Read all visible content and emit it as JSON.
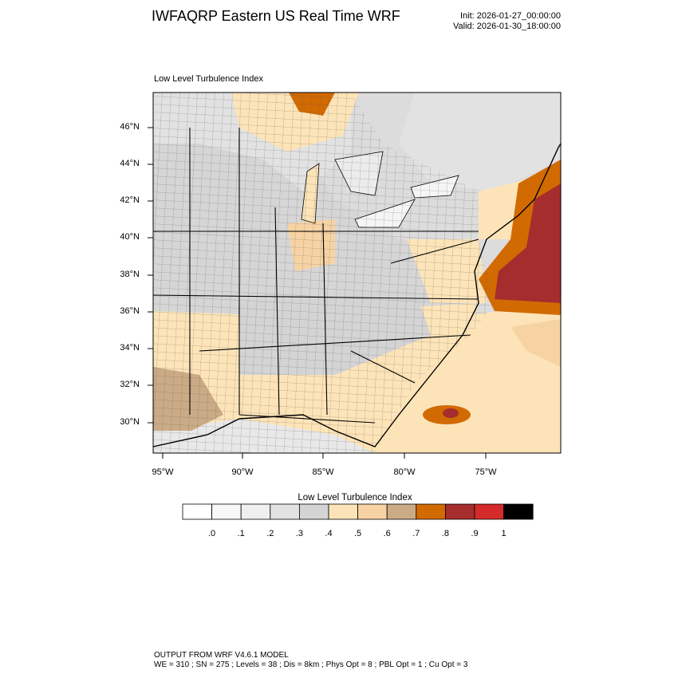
{
  "header": {
    "title": "IWFAQRP Eastern US Real Time WRF",
    "init": "Init: 2026-01-27_00:00:00",
    "valid": "Valid: 2026-01-30_18:00:00",
    "subtitle": "Low Level Turbulence Index"
  },
  "map": {
    "lat_labels": [
      "46°N",
      "44°N",
      "42°N",
      "40°N",
      "38°N",
      "36°N",
      "34°N",
      "32°N",
      "30°N"
    ],
    "lon_labels": [
      "95°W",
      "90°W",
      "85°W",
      "80°W",
      "75°W"
    ]
  },
  "colorbar": {
    "title": "Low Level Turbulence Index",
    "colors": [
      "#ffffff",
      "#f7f7f7",
      "#efefef",
      "#e2e2e2",
      "#d4d4d4",
      "#fde4b8",
      "#f7d3a4",
      "#cbab86",
      "#d26a02",
      "#a62d2d",
      "#d42a2a",
      "#000000"
    ],
    "labels": [
      ".0",
      ".1",
      ".2",
      ".3",
      ".4",
      ".5",
      ".6",
      ".7",
      ".8",
      ".9",
      "1"
    ]
  },
  "footer": {
    "line1": "OUTPUT FROM WRF V4.6.1 MODEL",
    "line2": "WE = 310 ; SN = 275 ; Levels = 38 ; Dis = 8km ; Phys Opt = 8 ; PBL Opt = 1 ; Cu Opt = 3"
  }
}
